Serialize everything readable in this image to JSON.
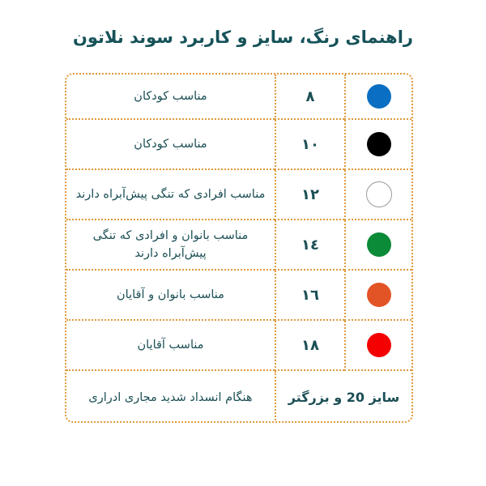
{
  "title": "راهنمای رنگ، سایز و کاربرد سوند نلاتون",
  "rows": [
    {
      "color_name": "blue",
      "color": "#0a6fc2",
      "size": "٨",
      "usage": "مناسب کودکان"
    },
    {
      "color_name": "black",
      "color": "#000000",
      "size": "١٠",
      "usage": "مناسب کودکان"
    },
    {
      "color_name": "white",
      "color": "#ffffff",
      "size": "١٢",
      "usage": "مناسب افرادی که تنگی پیش‌آبراه دارند"
    },
    {
      "color_name": "green",
      "color": "#0b8a37",
      "size": "١٤",
      "usage": "مناسب بانوان و افرادی که تنگی پیش‌آبراه دارند"
    },
    {
      "color_name": "orange",
      "color": "#e25425",
      "size": "١٦",
      "usage": "مناسب بانوان و آقایان"
    },
    {
      "color_name": "red",
      "color": "#f40000",
      "size": "١٨",
      "usage": "مناسب آقایان"
    }
  ],
  "last_row": {
    "size": "سایز 20 و بزرگتر",
    "usage": "هنگام انسداد شدید مجاری ادراری"
  },
  "colors": {
    "title": "#165259",
    "border": "#e09a3c",
    "text": "#1b4f55"
  }
}
